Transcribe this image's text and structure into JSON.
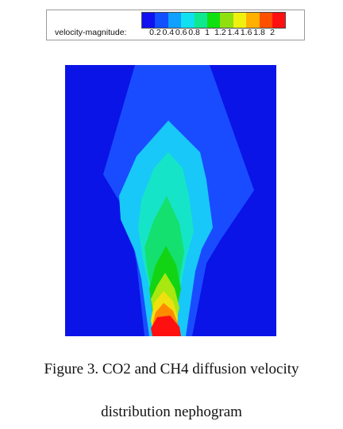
{
  "legend": {
    "title": "velocity-magnitude:",
    "ticks": [
      "0.2",
      "0.4",
      "0.6",
      "0.8",
      "1",
      "1.2",
      "1.4",
      "1.6",
      "1.8",
      "2"
    ],
    "colors": [
      "#1010f0",
      "#1050ff",
      "#10a0ff",
      "#10e0f0",
      "#10e890",
      "#10e010",
      "#90e010",
      "#f0f010",
      "#ffb000",
      "#ff5000",
      "#ff1010"
    ]
  },
  "plot": {
    "background": "#0a14e6",
    "contour_colors": [
      "#1a4cff",
      "#18c8f8",
      "#16e4c8",
      "#14e070",
      "#12d414",
      "#a8e810",
      "#f0e010",
      "#ff8a00",
      "#ff1010"
    ]
  },
  "caption": {
    "line1": "Figure 3. CO2 and CH4 diffusion velocity",
    "line2": "distribution nephogram"
  }
}
